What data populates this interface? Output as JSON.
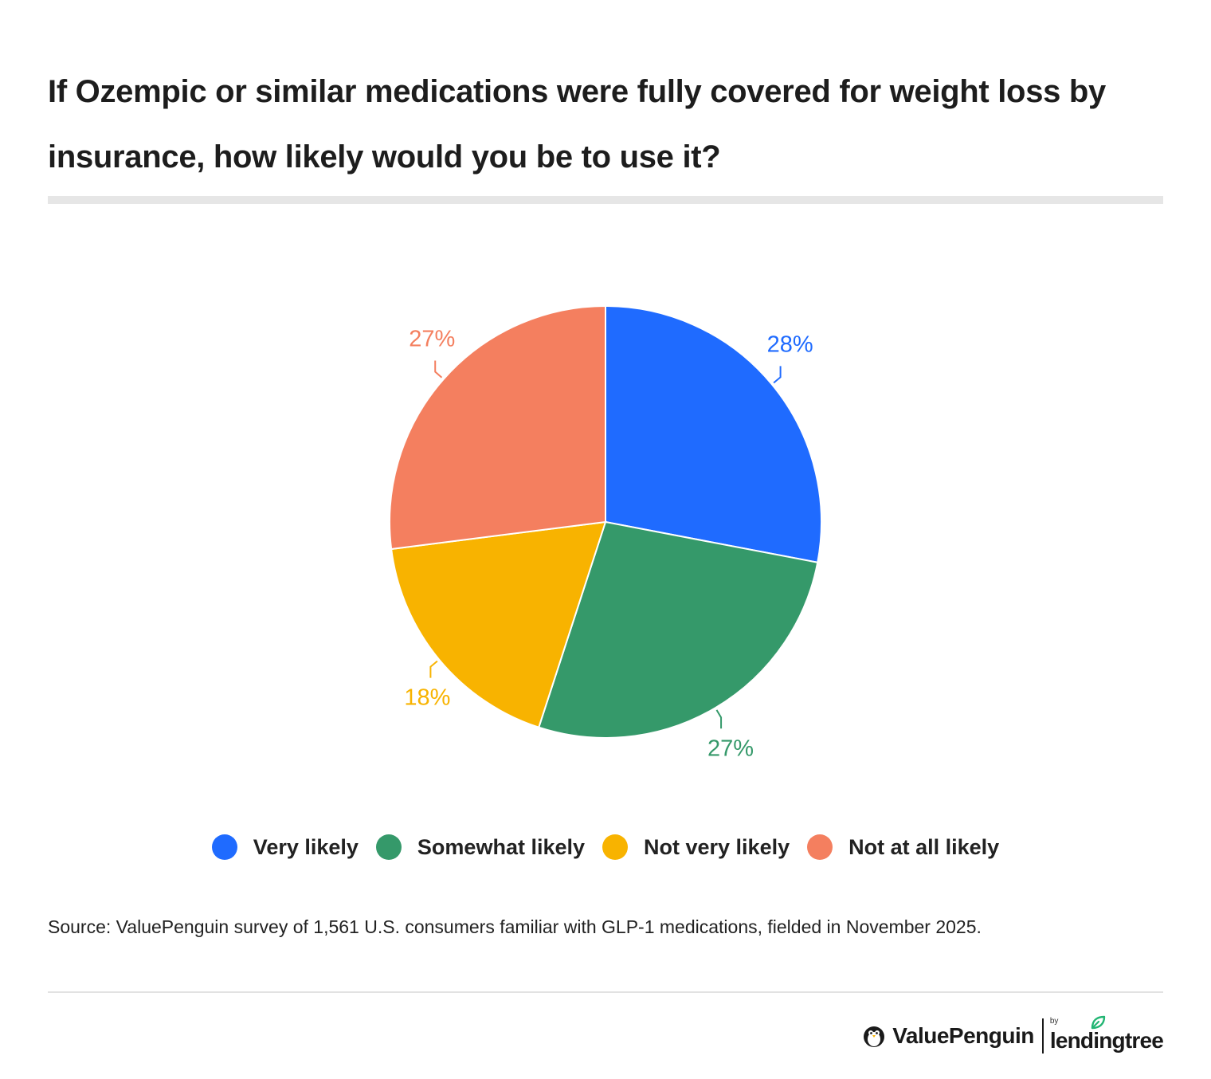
{
  "title": "If Ozempic or similar medications were fully covered for weight loss by insurance, how likely would you be to use it?",
  "source": "Source: ValuePenguin survey of 1,561 U.S. consumers familiar with GLP-1 medications, fielded in November 2025.",
  "brand": {
    "valuepenguin": "ValuePenguin",
    "by": "by",
    "lendingtree": "lendingtree",
    "lendingtree_leaf_color": "#22b573"
  },
  "chart_data": {
    "type": "pie",
    "title": "If Ozempic or similar medications were fully covered for weight loss by insurance, how likely would you be to use it?",
    "legend_position": "bottom",
    "slices": [
      {
        "label": "Very likely",
        "value": 28,
        "display": "28%",
        "color": "#1f6bff"
      },
      {
        "label": "Somewhat likely",
        "value": 27,
        "display": "27%",
        "color": "#35996a"
      },
      {
        "label": "Not very likely",
        "value": 18,
        "display": "18%",
        "color": "#f8b300"
      },
      {
        "label": "Not at all likely",
        "value": 27,
        "display": "27%",
        "color": "#f47f5f"
      }
    ]
  }
}
